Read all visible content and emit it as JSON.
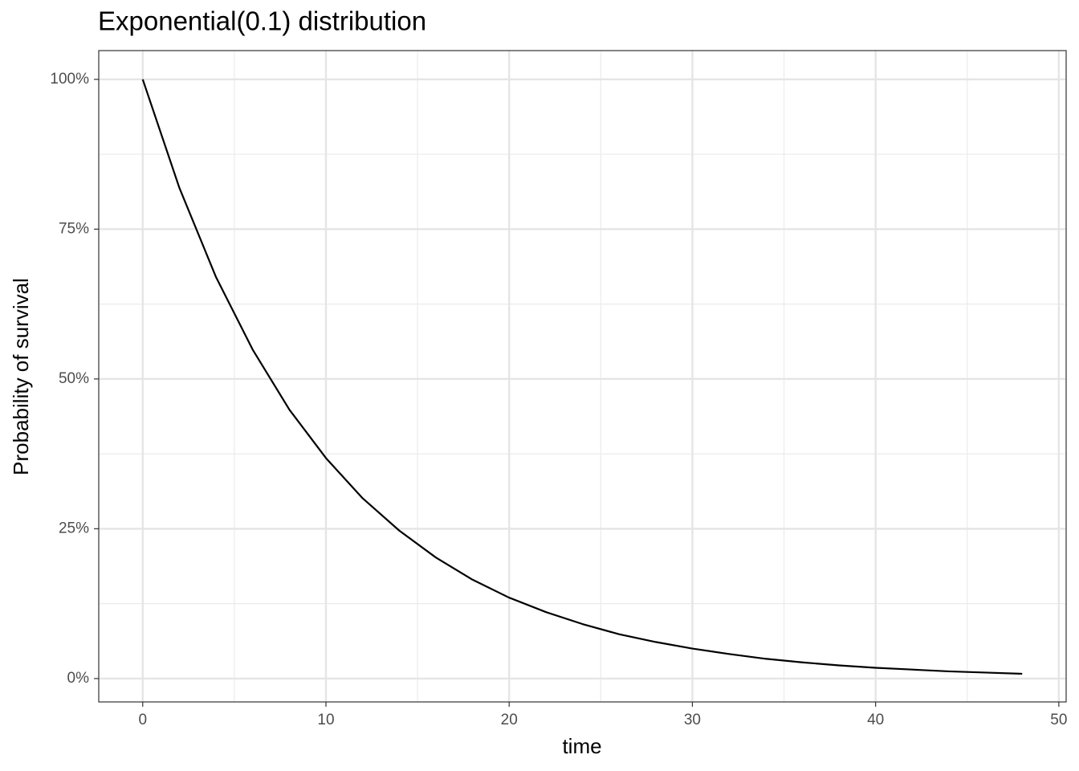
{
  "chart_data": {
    "type": "line",
    "title": "Exponential(0.1) distribution",
    "x_label": "time",
    "y_label": "Probability of survival",
    "x": [
      0,
      2,
      4,
      6,
      8,
      10,
      12,
      14,
      16,
      18,
      20,
      22,
      24,
      26,
      28,
      30,
      32,
      34,
      36,
      38,
      40,
      42,
      44,
      46,
      48
    ],
    "values": [
      100,
      81.9,
      67.0,
      54.9,
      44.9,
      36.8,
      30.1,
      24.7,
      20.2,
      16.5,
      13.5,
      11.1,
      9.1,
      7.4,
      6.1,
      5.0,
      4.1,
      3.3,
      2.7,
      2.2,
      1.8,
      1.5,
      1.2,
      1.0,
      0.8
    ],
    "color": "#000000",
    "xlim": [
      -2.4,
      50.4
    ],
    "ylim": [
      -3.9,
      104.8
    ],
    "xticks": [
      0,
      10,
      20,
      30,
      40,
      50
    ],
    "yticks": [
      {
        "value": 0,
        "label": "0%"
      },
      {
        "value": 25,
        "label": "25%"
      },
      {
        "value": 50,
        "label": "50%"
      },
      {
        "value": 75,
        "label": "75%"
      },
      {
        "value": 100,
        "label": "100%"
      }
    ],
    "grid": true
  }
}
